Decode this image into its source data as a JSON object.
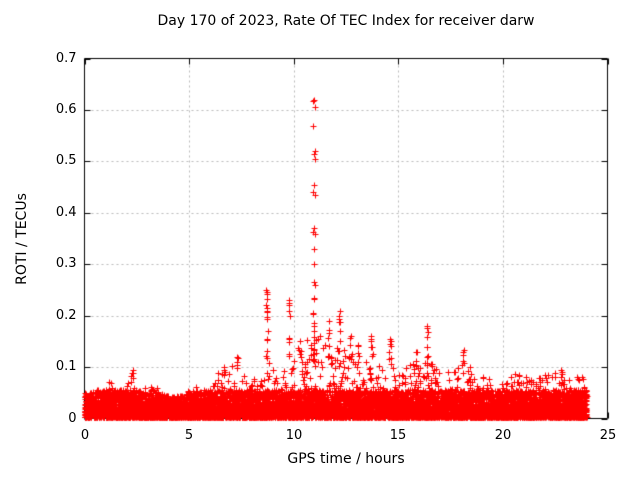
{
  "figure": {
    "background": "#ffffff",
    "border_color": "#000000"
  },
  "chart_data": {
    "type": "scatter",
    "title": "Day 170 of 2023, Rate Of TEC Index for receiver darw",
    "xlabel": "GPS time / hours",
    "ylabel": "ROTI / TECUs",
    "xlim": [
      0,
      25
    ],
    "ylim": [
      0,
      0.7
    ],
    "xticks": [
      0,
      5,
      10,
      15,
      20,
      25
    ],
    "yticks": [
      0,
      0.1,
      0.2,
      0.3,
      0.4,
      0.5,
      0.6,
      0.7
    ],
    "xtick_labels": [
      "0",
      "5",
      "10",
      "15",
      "20",
      "25"
    ],
    "ytick_labels": [
      "0",
      "0.1",
      "0.2",
      "0.3",
      "0.4",
      "0.5",
      "0.6",
      "0.7"
    ],
    "grid": "dashed",
    "grid_color": "#b9b9b9",
    "legend": "none",
    "marker": "+",
    "marker_color": "#ff0000",
    "data_time_range_hours": [
      0,
      24
    ],
    "baseline_band": {
      "description": "dense noise band of ROTI values present at all hours",
      "min": 0.0,
      "max": 0.05
    },
    "envelope": {
      "description": "approximate upper envelope of the dense scatter, 0.5 h bins",
      "bin_width_hours": 0.5,
      "t": [
        0.25,
        0.75,
        1.25,
        1.75,
        2.25,
        2.75,
        3.25,
        3.75,
        4.25,
        4.75,
        5.25,
        5.75,
        6.25,
        6.75,
        7.25,
        7.75,
        8.25,
        8.75,
        9.25,
        9.75,
        10.25,
        10.75,
        11.25,
        11.75,
        12.25,
        12.75,
        13.25,
        13.75,
        14.25,
        14.75,
        15.25,
        15.75,
        16.25,
        16.75,
        17.25,
        17.75,
        18.25,
        18.75,
        19.25,
        19.75,
        20.25,
        20.75,
        21.25,
        21.75,
        22.25,
        22.75,
        23.25,
        23.75
      ],
      "max": [
        0.05,
        0.06,
        0.075,
        0.055,
        0.09,
        0.06,
        0.07,
        0.046,
        0.042,
        0.046,
        0.065,
        0.058,
        0.085,
        0.1,
        0.115,
        0.1,
        0.085,
        0.13,
        0.08,
        0.11,
        0.15,
        0.17,
        0.17,
        0.15,
        0.13,
        0.14,
        0.13,
        0.13,
        0.1,
        0.12,
        0.1,
        0.11,
        0.13,
        0.1,
        0.09,
        0.1,
        0.11,
        0.09,
        0.08,
        0.075,
        0.08,
        0.09,
        0.08,
        0.085,
        0.09,
        0.1,
        0.08,
        0.085
      ]
    },
    "spikes": [
      {
        "t": 2.3,
        "values": [
          0.094,
          0.088
        ]
      },
      {
        "t": 6.7,
        "values": [
          0.1,
          0.091
        ]
      },
      {
        "t": 7.3,
        "values": [
          0.12,
          0.11,
          0.099
        ]
      },
      {
        "t": 8.72,
        "values": [
          0.25,
          0.243,
          0.232,
          0.22,
          0.21,
          0.198,
          0.17,
          0.155,
          0.132,
          0.118
        ]
      },
      {
        "t": 9.8,
        "values": [
          0.23,
          0.221,
          0.21,
          0.2,
          0.156,
          0.148,
          0.125
        ]
      },
      {
        "t": 10.35,
        "values": [
          0.15,
          0.132,
          0.12
        ]
      },
      {
        "t": 10.97,
        "values": [
          0.62,
          0.605,
          0.568,
          0.52,
          0.505,
          0.455,
          0.44,
          0.37,
          0.363,
          0.33,
          0.3,
          0.265,
          0.235,
          0.205,
          0.185,
          0.17,
          0.158,
          0.147,
          0.136,
          0.125,
          0.115
        ]
      },
      {
        "t": 11.68,
        "values": [
          0.19,
          0.172,
          0.156,
          0.141,
          0.122
        ]
      },
      {
        "t": 12.18,
        "values": [
          0.21,
          0.199,
          0.188,
          0.17,
          0.15,
          0.132
        ]
      },
      {
        "t": 12.72,
        "values": [
          0.16,
          0.143,
          0.121
        ]
      },
      {
        "t": 13.1,
        "values": [
          0.142,
          0.121,
          0.11
        ]
      },
      {
        "t": 13.7,
        "values": [
          0.16,
          0.15,
          0.139,
          0.121
        ]
      },
      {
        "t": 14.6,
        "values": [
          0.155,
          0.144,
          0.13,
          0.118
        ]
      },
      {
        "t": 15.9,
        "values": [
          0.13,
          0.112
        ]
      },
      {
        "t": 16.4,
        "values": [
          0.18,
          0.169,
          0.158,
          0.14,
          0.121
        ]
      },
      {
        "t": 18.1,
        "values": [
          0.133,
          0.124,
          0.112
        ]
      },
      {
        "t": 22.8,
        "values": [
          0.095,
          0.086
        ]
      }
    ]
  }
}
